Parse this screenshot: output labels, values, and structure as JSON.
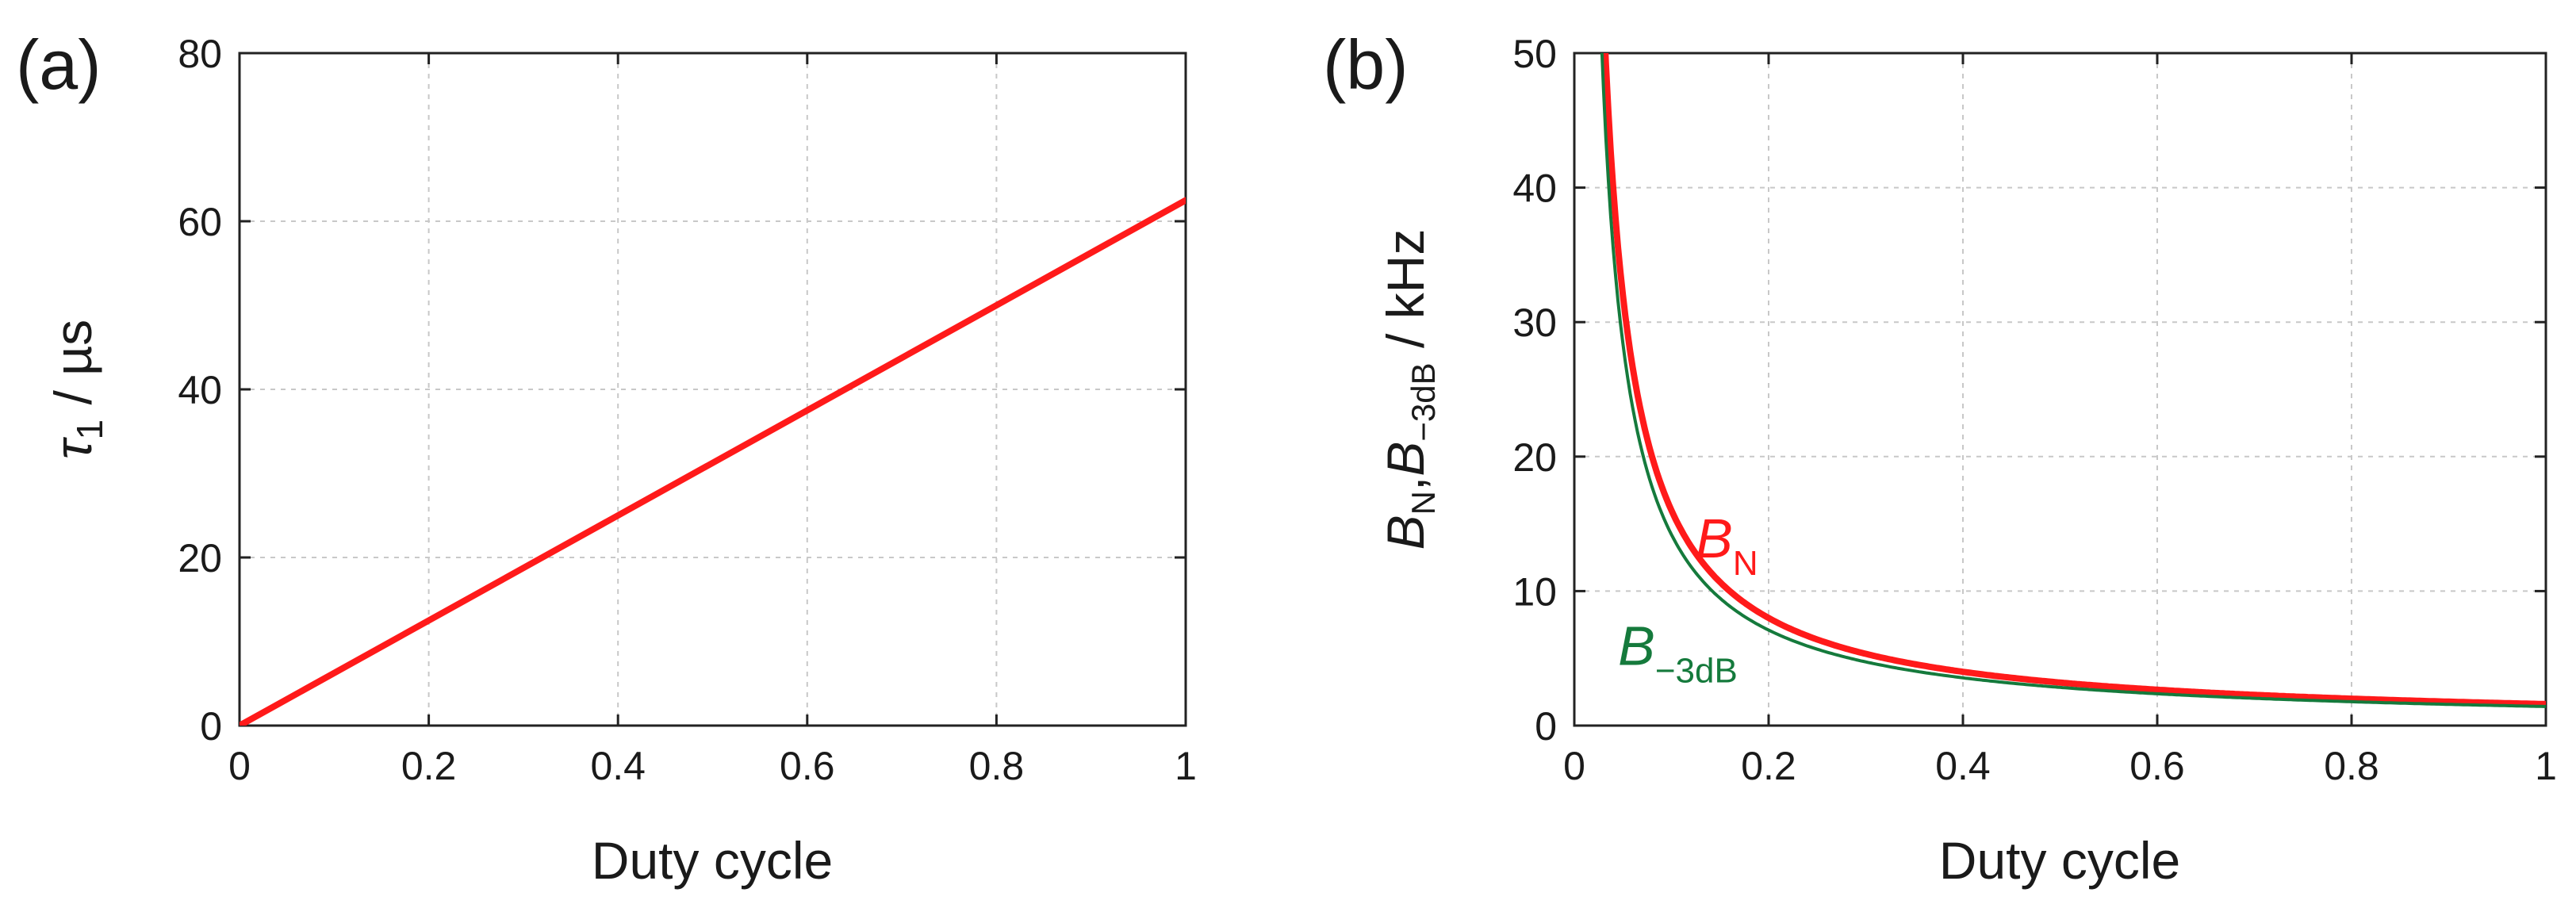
{
  "chart_data": [
    {
      "id": "a",
      "type": "line",
      "panel_label": "(a)",
      "xlabel": "Duty cycle",
      "ylabel_main": "τ",
      "ylabel_sub": "1",
      "ylabel_unit": " / µs",
      "xlim": [
        0,
        1
      ],
      "ylim": [
        0,
        80
      ],
      "grid": true,
      "x_ticks": [
        0,
        0.2,
        0.4,
        0.6,
        0.8,
        1
      ],
      "x_tick_labels": [
        "0",
        "0.2",
        "0.4",
        "0.6",
        "0.8",
        "1"
      ],
      "y_ticks": [
        0,
        20,
        40,
        60,
        80
      ],
      "y_tick_labels": [
        "0",
        "20",
        "40",
        "60",
        "80"
      ],
      "series": [
        {
          "name": "τ1",
          "color": "#ff1a1a",
          "x": [
            0,
            1
          ],
          "y": [
            0,
            62.5
          ]
        }
      ]
    },
    {
      "id": "b",
      "type": "line",
      "panel_label": "(b)",
      "xlabel": "Duty cycle",
      "ylabel_parts": [
        "B",
        "N",
        ",",
        "B",
        "−3dB",
        " / kHz"
      ],
      "xlim": [
        0,
        1
      ],
      "ylim": [
        0,
        50
      ],
      "grid": true,
      "x_ticks": [
        0,
        0.2,
        0.4,
        0.6,
        0.8,
        1
      ],
      "x_tick_labels": [
        "0",
        "0.2",
        "0.4",
        "0.6",
        "0.8",
        "1"
      ],
      "y_ticks": [
        0,
        10,
        20,
        30,
        40,
        50
      ],
      "y_tick_labels": [
        "0",
        "10",
        "20",
        "30",
        "40",
        "50"
      ],
      "series": [
        {
          "name": "B_N",
          "label_main": "B",
          "label_sub": "N",
          "color": "#ff1a1a",
          "k": 1.6,
          "annot_x": 0.125,
          "annot_y": 12.5
        },
        {
          "name": "B_-3dB",
          "label_main": "B",
          "label_sub": "−3dB",
          "color": "#157a3c",
          "k": 1.42,
          "annot_x": 0.045,
          "annot_y": 4.5
        }
      ]
    }
  ]
}
